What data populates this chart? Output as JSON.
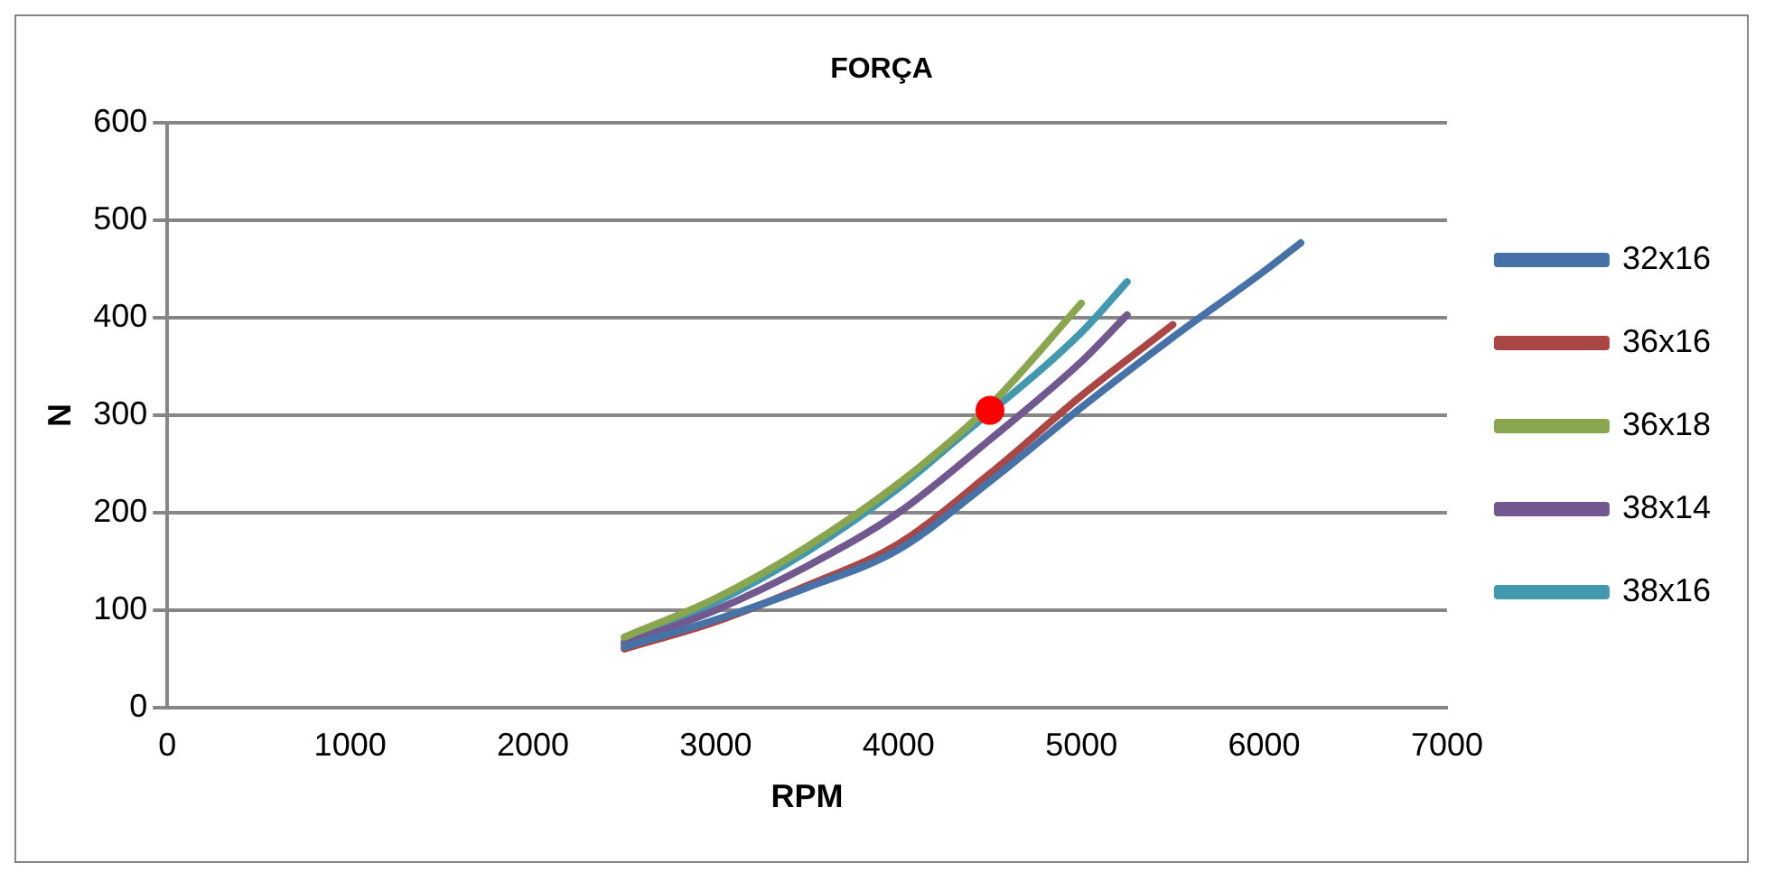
{
  "chart_data": {
    "type": "line",
    "title": "FORÇA",
    "xlabel": "RPM",
    "ylabel": "N",
    "xlim": [
      0,
      7000
    ],
    "xticks": [
      0,
      1000,
      2000,
      3000,
      4000,
      5000,
      6000,
      7000
    ],
    "ylim": [
      0,
      600
    ],
    "yticks": [
      0,
      100,
      200,
      300,
      400,
      500,
      600
    ],
    "grid": "y",
    "legend": "right",
    "marker": "none",
    "line_style": "solid",
    "series": [
      {
        "name": "32x16",
        "color": "#4672a8",
        "x": [
          2500,
          3000,
          3500,
          4000,
          4500,
          5000,
          5500,
          6000,
          6200
        ],
        "values": [
          62,
          90,
          123,
          162,
          232,
          308,
          380,
          448,
          477
        ]
      },
      {
        "name": "36x16",
        "color": "#aa4643",
        "x": [
          2500,
          3000,
          3500,
          4000,
          4500,
          5000,
          5500
        ],
        "values": [
          60,
          88,
          125,
          168,
          240,
          320,
          393
        ]
      },
      {
        "name": "36x18",
        "color": "#89a54e",
        "x": [
          2500,
          3000,
          3500,
          4000,
          4500,
          5000
        ],
        "values": [
          72,
          112,
          165,
          230,
          310,
          415
        ]
      },
      {
        "name": "38x14",
        "color": "#71588f",
        "x": [
          2500,
          3000,
          3500,
          4000,
          4500,
          5000,
          5250
        ],
        "values": [
          65,
          100,
          145,
          200,
          275,
          355,
          403
        ]
      },
      {
        "name": "38x16",
        "color": "#4198af",
        "x": [
          2500,
          3000,
          3500,
          4000,
          4300,
          5000,
          5250
        ],
        "values": [
          68,
          108,
          160,
          225,
          272,
          385,
          437
        ]
      },
      {
        "type": "scatter",
        "color": "#ff0000",
        "marker": "circle",
        "x": [
          4500
        ],
        "values": [
          305
        ]
      }
    ]
  }
}
